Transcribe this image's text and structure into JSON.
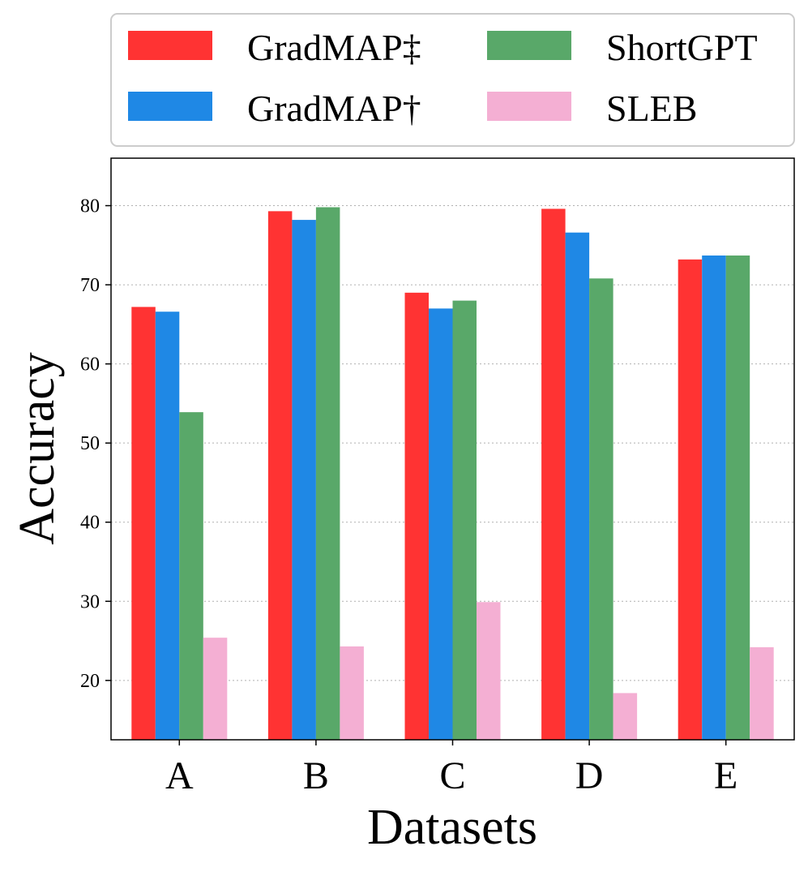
{
  "chart_data": {
    "type": "bar",
    "title": "",
    "xlabel": "Datasets",
    "ylabel": "Accuracy",
    "categories": [
      "A",
      "B",
      "C",
      "D",
      "E"
    ],
    "ylim": [
      12.5,
      86
    ],
    "yticks": [
      20,
      30,
      40,
      50,
      60,
      70,
      80
    ],
    "grid": "y-axis dotted",
    "legend_placement": "top, above plot, 2 columns",
    "series": [
      {
        "name": "GradMAP‡",
        "color": "#ff3333",
        "values": [
          67.2,
          79.3,
          69.0,
          79.6,
          73.2
        ]
      },
      {
        "name": "GradMAP†",
        "color": "#1f88e5",
        "values": [
          66.6,
          78.2,
          67.0,
          76.6,
          73.7
        ]
      },
      {
        "name": "ShortGPT",
        "color": "#59a869",
        "values": [
          53.9,
          79.8,
          68.0,
          70.8,
          73.7
        ]
      },
      {
        "name": "SLEB",
        "color": "#f4afd3",
        "values": [
          25.4,
          24.3,
          29.9,
          18.4,
          24.2
        ]
      }
    ]
  }
}
